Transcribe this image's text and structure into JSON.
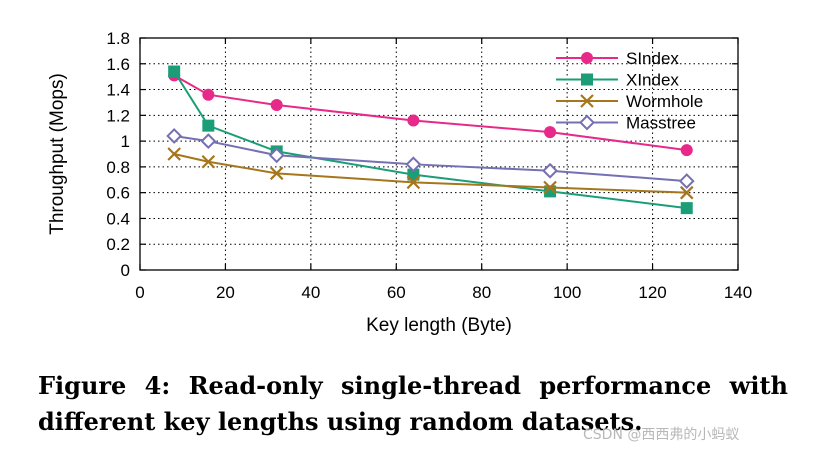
{
  "chart_data": {
    "type": "line",
    "xlabel": "Key length (Byte)",
    "ylabel": "Throughput (Mops)",
    "xlim": [
      0,
      140
    ],
    "ylim": [
      0,
      1.8
    ],
    "xticks": [
      0,
      20,
      40,
      60,
      80,
      100,
      120,
      140
    ],
    "yticks": [
      0,
      0.2,
      0.4,
      0.6,
      0.8,
      1,
      1.2,
      1.4,
      1.6,
      1.8
    ],
    "ytick_labels": [
      "0",
      "0.2",
      "0.4",
      "0.6",
      "0.8",
      "1",
      "1.2",
      "1.4",
      "1.6",
      "1.8"
    ],
    "grid": true,
    "legend_position": "top-right",
    "x": [
      8,
      16,
      32,
      64,
      96,
      128
    ],
    "series": [
      {
        "name": "SIndex",
        "values": [
          1.51,
          1.36,
          1.28,
          1.16,
          1.07,
          0.93
        ],
        "color": "#e7298a",
        "marker": "filled-circle"
      },
      {
        "name": "XIndex",
        "values": [
          1.54,
          1.12,
          0.92,
          0.74,
          0.61,
          0.48
        ],
        "color": "#1b9e77",
        "marker": "filled-square"
      },
      {
        "name": "Wormhole",
        "values": [
          0.9,
          0.84,
          0.75,
          0.68,
          0.64,
          0.6
        ],
        "color": "#a6761d",
        "marker": "cross"
      },
      {
        "name": "Masstree",
        "values": [
          1.04,
          1.0,
          0.89,
          0.82,
          0.77,
          0.69
        ],
        "color": "#7570b3",
        "marker": "open-diamond"
      }
    ]
  },
  "caption": {
    "line1": "Figure 4: Read-only single-thread performance with",
    "line2": "different key lengths using random datasets."
  },
  "watermark": "CSDN @西西弗的小蚂蚁"
}
